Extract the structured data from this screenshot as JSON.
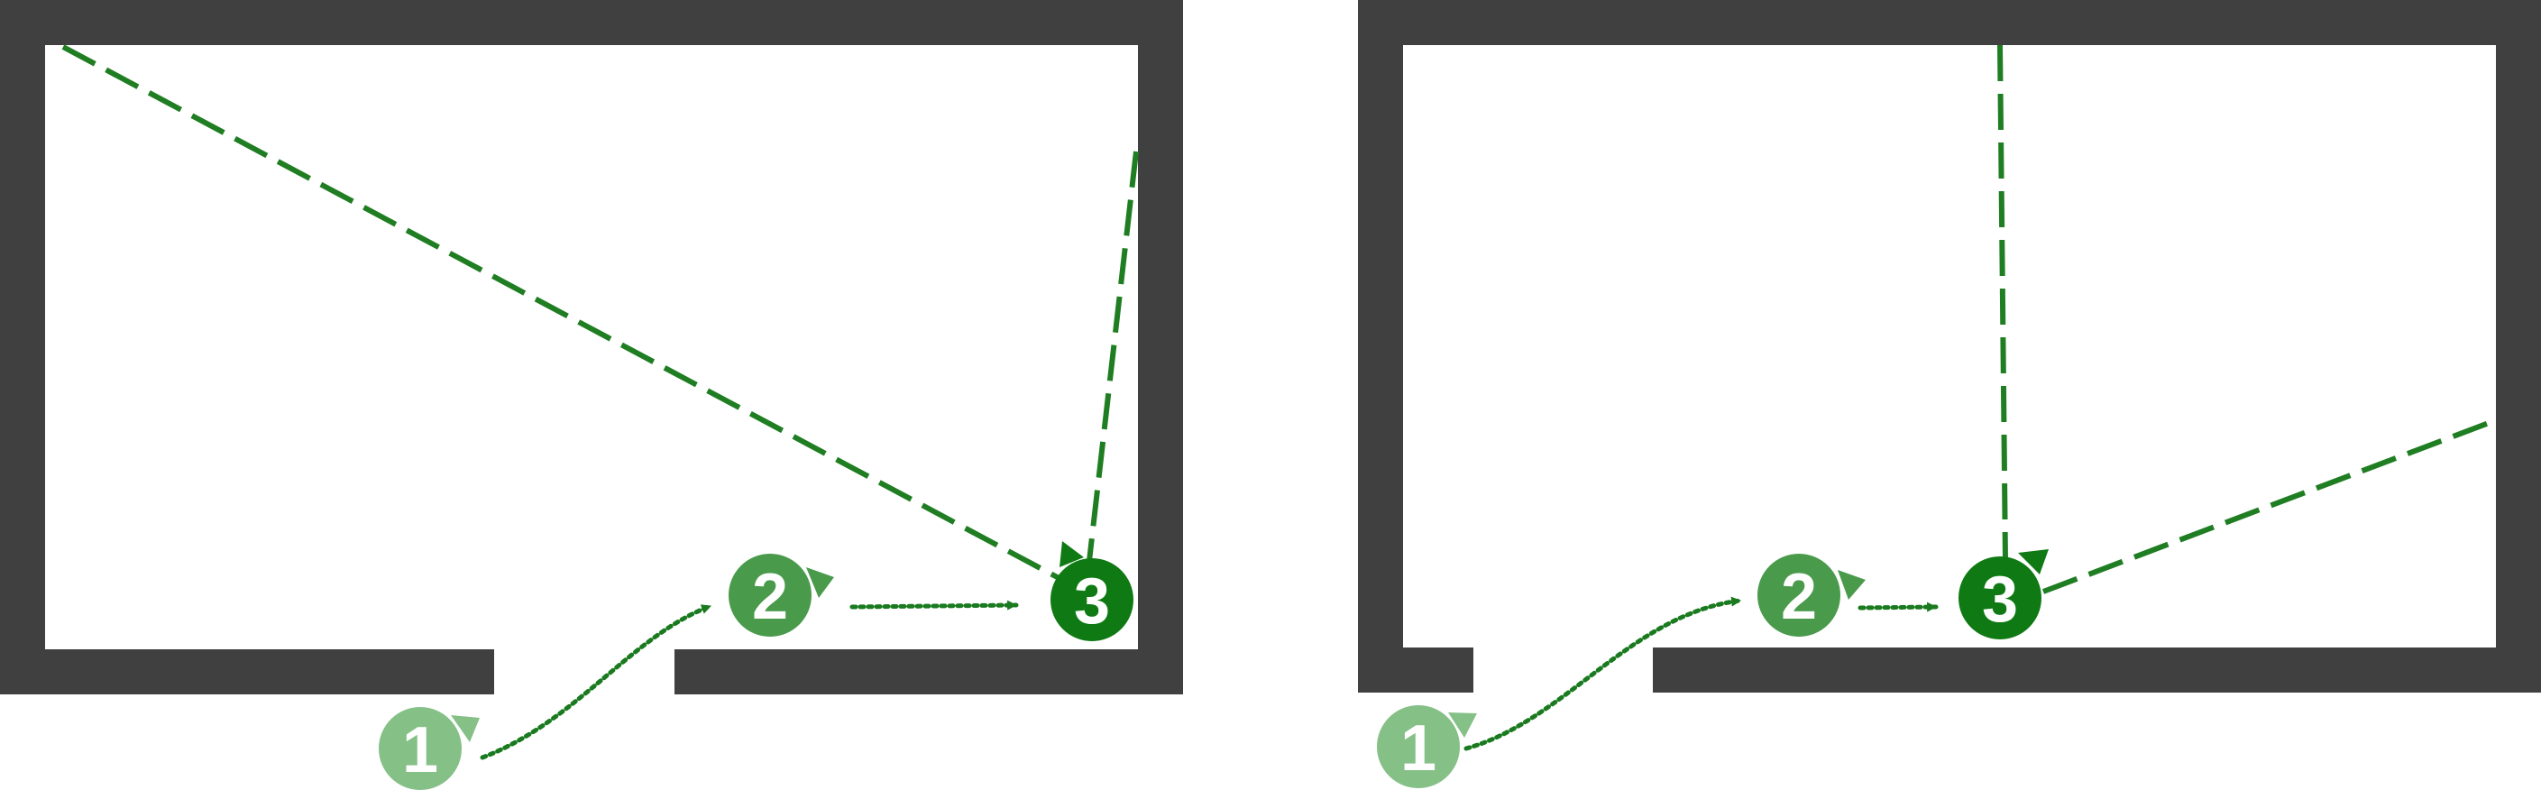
{
  "colors": {
    "wall": "#404040",
    "step1": "#85c087",
    "step2": "#4a9a4c",
    "step3": "#0f7a14",
    "path_dotted": "#1a7a1f",
    "ray_dashed": "#1f7d22",
    "label": "#ffffff"
  },
  "panels": [
    {
      "name": "left-room",
      "markers": [
        {
          "label": "1",
          "step": "step1"
        },
        {
          "label": "2",
          "step": "step2"
        },
        {
          "label": "3",
          "step": "step3"
        }
      ]
    },
    {
      "name": "right-room",
      "markers": [
        {
          "label": "1",
          "step": "step1"
        },
        {
          "label": "2",
          "step": "step2"
        },
        {
          "label": "3",
          "step": "step3"
        }
      ]
    }
  ]
}
